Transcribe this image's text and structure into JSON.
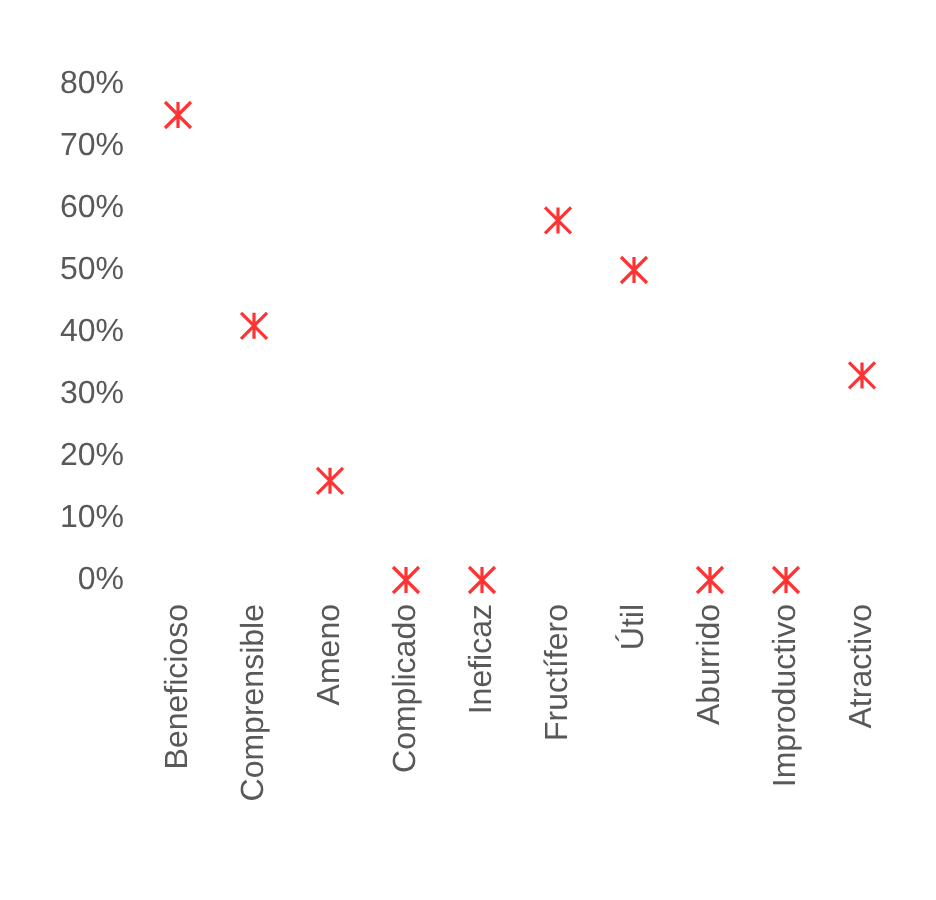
{
  "chart_data": {
    "type": "scatter",
    "categories": [
      "Beneficioso",
      "Comprensible",
      "Ameno",
      "Complicado",
      "Ineficaz",
      "Fructífero",
      "Útil",
      "Aburrido",
      "Improductivo",
      "Atractivo"
    ],
    "series": [
      {
        "color": "#ff0000",
        "values": [
          75,
          41,
          16,
          0,
          0,
          58,
          50,
          0,
          0,
          33
        ]
      }
    ],
    "ylim": [
      0,
      80
    ],
    "yticks": [
      {
        "value": 0,
        "label": "0%"
      },
      {
        "value": 10,
        "label": "10%"
      },
      {
        "value": 20,
        "label": "20%"
      },
      {
        "value": 30,
        "label": "30%"
      },
      {
        "value": 40,
        "label": "40%"
      },
      {
        "value": 50,
        "label": "50%"
      },
      {
        "value": 60,
        "label": "60%"
      },
      {
        "value": 70,
        "label": "70%"
      },
      {
        "value": 80,
        "label": "80%"
      }
    ],
    "grid": false,
    "marker": "cross"
  }
}
